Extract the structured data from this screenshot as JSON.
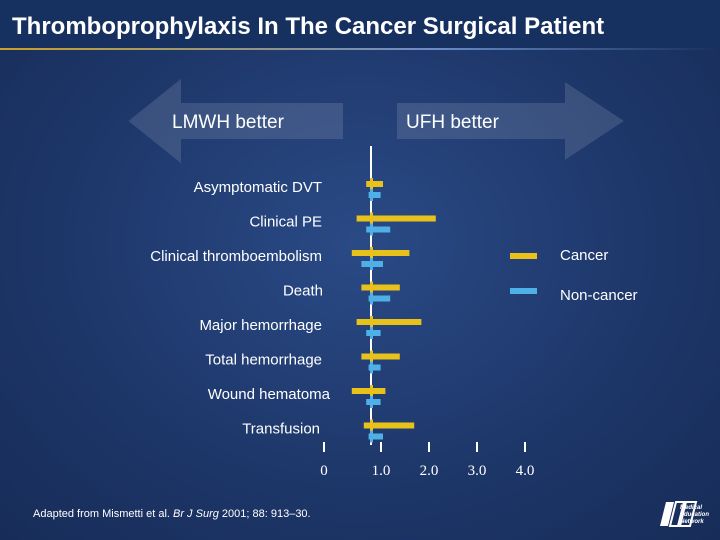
{
  "title": "Thromboprophylaxis In The Cancer Surgical Patient",
  "arrows": {
    "left_label": "LMWH better",
    "right_label": "UFH better"
  },
  "legend": [
    {
      "label": "Cancer",
      "color": "#e8c21a"
    },
    {
      "label": "Non-cancer",
      "color": "#4fb0e8"
    }
  ],
  "source": {
    "prefix": "Adapted from Mismetti et al. ",
    "journal": "Br J Surg",
    "suffix": " 2001; 88: 913–30."
  },
  "logo_text": "Medical Education Network",
  "chart_data": {
    "type": "forest",
    "title": "Thromboprophylaxis In The Cancer Surgical Patient",
    "xlabel": "",
    "xlim": [
      0,
      4.0
    ],
    "reference_line": 1.0,
    "ticks": [
      {
        "value": 0,
        "label": "0"
      },
      {
        "value": 1.0,
        "label": "1.0"
      },
      {
        "value": 2.0,
        "label": "2.0"
      },
      {
        "value": 3.0,
        "label": "3.0"
      },
      {
        "value": 4.0,
        "label": "4.0"
      }
    ],
    "categories": [
      "Asymptomatic DVT",
      "Clinical PE",
      "Clinical thromboembolism",
      "Death",
      "Major hemorrhage",
      "Total hemorrhage",
      "Wound hematoma",
      "Transfusion"
    ],
    "series": [
      {
        "name": "Cancer",
        "color": "#e8c21a",
        "low": [
          0.9,
          0.7,
          0.6,
          0.8,
          0.7,
          0.8,
          0.6,
          0.85
        ],
        "point": [
          1.0,
          1.0,
          1.0,
          1.0,
          1.0,
          1.0,
          1.0,
          1.0
        ],
        "high": [
          1.25,
          2.35,
          1.8,
          1.6,
          2.05,
          1.6,
          1.3,
          1.9
        ]
      },
      {
        "name": "Non-cancer",
        "color": "#4fb0e8",
        "low": [
          0.95,
          0.9,
          0.8,
          0.95,
          0.9,
          0.95,
          0.9,
          0.95
        ],
        "point": [
          1.0,
          1.0,
          1.0,
          1.0,
          1.0,
          1.0,
          1.0,
          1.0
        ],
        "high": [
          1.2,
          1.4,
          1.25,
          1.4,
          1.2,
          1.2,
          1.2,
          1.25
        ]
      }
    ]
  }
}
